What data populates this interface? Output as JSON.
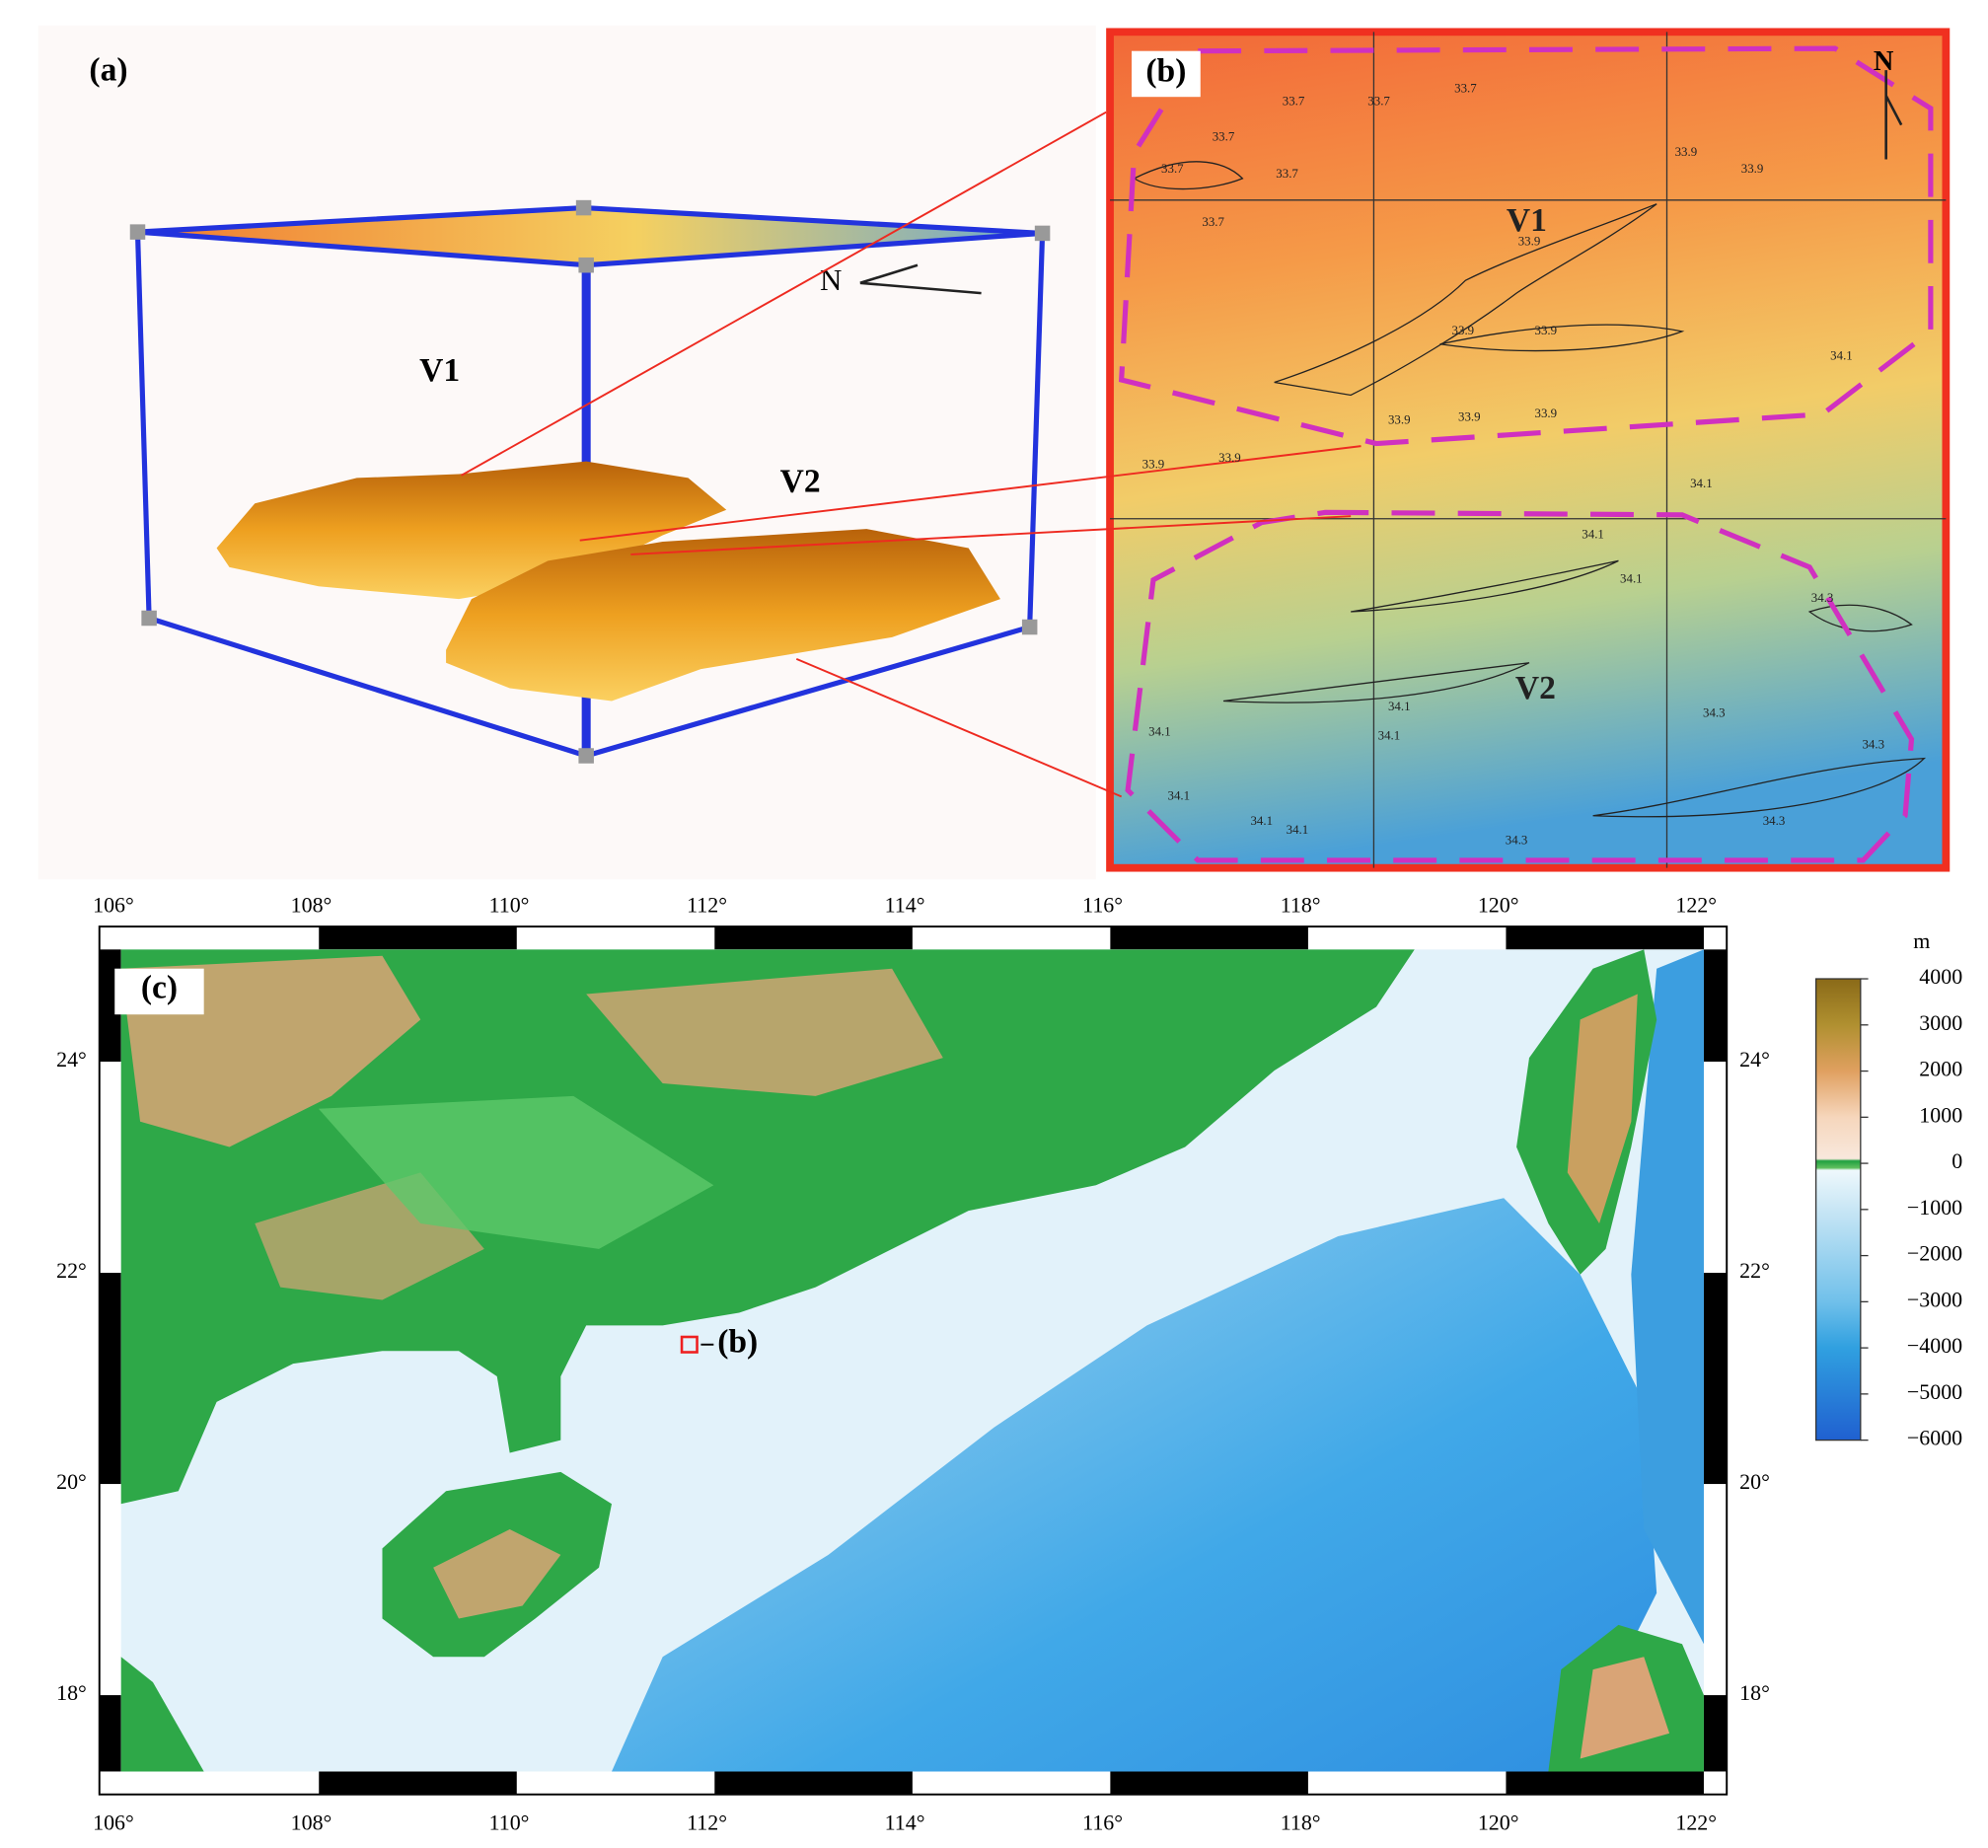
{
  "panel_a": {
    "label": "(a)",
    "v1": "V1",
    "v2": "V2",
    "north": "N"
  },
  "panel_b": {
    "label": "(b)",
    "v1": "V1",
    "v2": "V2",
    "north": "N",
    "contour_labels": [
      "33.7",
      "33.7",
      "33.7",
      "33.7",
      "33.7",
      "33.7",
      "33.7",
      "33.9",
      "33.9",
      "33.9",
      "33.9",
      "33.9",
      "33.9",
      "33.9",
      "33.9",
      "33.9",
      "33.9",
      "34.1",
      "34.1",
      "34.1",
      "34.1",
      "34.1",
      "34.1",
      "34.1",
      "34.1",
      "34.1",
      "34.1",
      "34.3",
      "34.3",
      "34.3",
      "34.3",
      "34.3"
    ]
  },
  "panel_c": {
    "label": "(c)",
    "inset_label": "(b)",
    "lon_labels": [
      "106°",
      "108°",
      "110°",
      "112°",
      "114°",
      "116°",
      "118°",
      "120°",
      "122°"
    ],
    "lat_labels": [
      "24°",
      "22°",
      "20°",
      "18°"
    ],
    "colorbar": {
      "unit": "m",
      "ticks": [
        "4000",
        "3000",
        "2000",
        "1000",
        "0",
        "−1000",
        "−2000",
        "−3000",
        "−4000",
        "−5000",
        "−6000"
      ]
    }
  }
}
